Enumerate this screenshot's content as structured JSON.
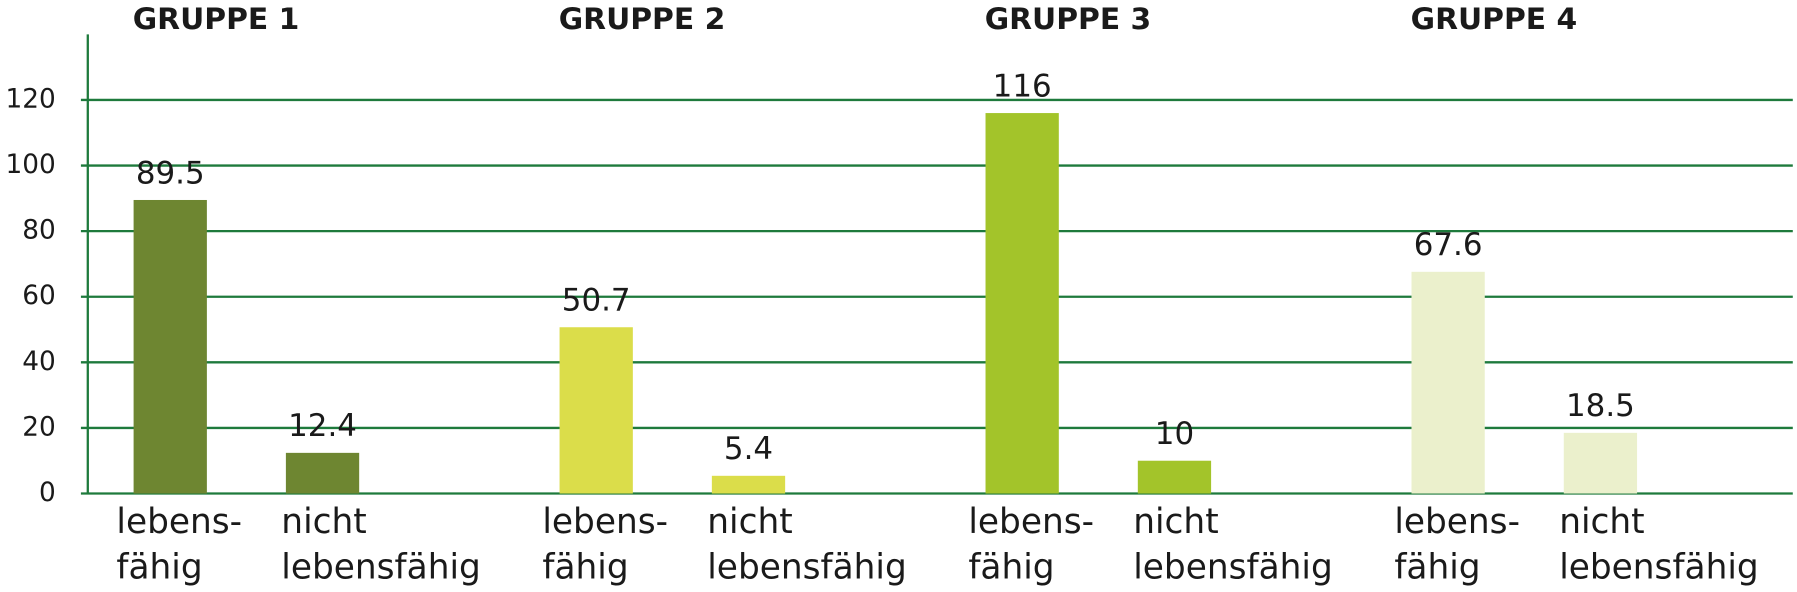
{
  "chart_data": {
    "type": "bar",
    "ylim": [
      0,
      140
    ],
    "yticks": [
      0,
      20,
      40,
      60,
      80,
      100,
      120
    ],
    "grid": true,
    "axis_color": "#1e7a3c",
    "groups": [
      {
        "title": "GRUPPE 1",
        "color": "#6e8631",
        "categories": [
          [
            "lebens-",
            "fähig"
          ],
          [
            "nicht",
            "lebensfähig"
          ]
        ],
        "values": [
          89.5,
          12.4
        ]
      },
      {
        "title": "GRUPPE 2",
        "color": "#dbdd4a",
        "categories": [
          [
            "lebens-",
            "fähig"
          ],
          [
            "nicht",
            "lebensfähig"
          ]
        ],
        "values": [
          50.7,
          5.4
        ]
      },
      {
        "title": "GRUPPE 3",
        "color": "#a3c42a",
        "categories": [
          [
            "lebens-",
            "fähig"
          ],
          [
            "nicht",
            "lebensfähig"
          ]
        ],
        "values": [
          116,
          10
        ]
      },
      {
        "title": "GRUPPE 4",
        "color": "#ebf0cc",
        "categories": [
          [
            "lebens-",
            "fähig"
          ],
          [
            "nicht",
            "lebensfähig"
          ]
        ],
        "values": [
          67.6,
          18.5
        ]
      }
    ]
  }
}
